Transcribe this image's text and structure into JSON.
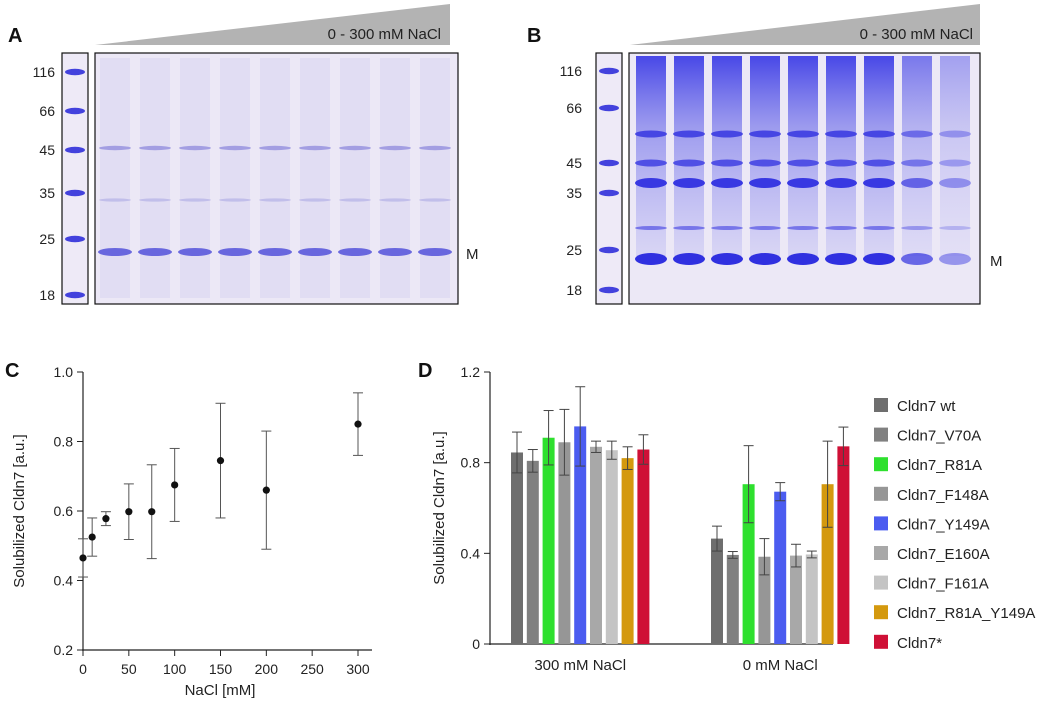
{
  "colors": {
    "gel_bg": "#ece8f6",
    "gel_band": "#3a3ce0",
    "ramp": "#b3b3b3",
    "axis": "#222222",
    "errorbar": "#555555",
    "point": "#111111"
  },
  "panels": {
    "A": {
      "letter": "A",
      "ramp_label": "0 - 300 mM NaCl",
      "ladder": [
        "116",
        "66",
        "45",
        "35",
        "25",
        "18"
      ],
      "band_label": "M"
    },
    "B": {
      "letter": "B",
      "ramp_label": "0 - 300 mM NaCl",
      "ladder": [
        "116",
        "66",
        "45",
        "35",
        "25",
        "18"
      ],
      "band_label": "M"
    }
  },
  "chart_data": [
    {
      "panel": "C",
      "type": "scatter",
      "letter": "C",
      "xlabel": "NaCl [mM]",
      "ylabel": "Solubilized Cldn7 [a.u.]",
      "xlim": [
        0,
        310
      ],
      "ylim": [
        0.2,
        1.0
      ],
      "xticks": [
        "0",
        "50",
        "100",
        "150",
        "200",
        "250",
        "300"
      ],
      "yticks": [
        "0.2",
        "0.4",
        "0.6",
        "0.8",
        "1.0"
      ],
      "points": [
        {
          "x": 0,
          "y": 0.465,
          "err": 0.055
        },
        {
          "x": 10,
          "y": 0.525,
          "err": 0.055
        },
        {
          "x": 25,
          "y": 0.578,
          "err": 0.02
        },
        {
          "x": 50,
          "y": 0.598,
          "err": 0.08
        },
        {
          "x": 75,
          "y": 0.598,
          "err": 0.135
        },
        {
          "x": 100,
          "y": 0.675,
          "err": 0.105
        },
        {
          "x": 150,
          "y": 0.745,
          "err": 0.165
        },
        {
          "x": 200,
          "y": 0.66,
          "err": 0.17
        },
        {
          "x": 300,
          "y": 0.85,
          "err": 0.09
        }
      ]
    },
    {
      "panel": "D",
      "type": "bar",
      "letter": "D",
      "ylabel": "Solubilized Cldn7 [a.u.]",
      "ylim": [
        0,
        1.2
      ],
      "yticks": [
        "0",
        "0.4",
        "0.8",
        "1.2"
      ],
      "categories": [
        "300 mM NaCl",
        "0 mM NaCl"
      ],
      "series": [
        {
          "name": "Cldn7 wt",
          "color": "#6e6e6e",
          "values": [
            0.845,
            0.465
          ],
          "errors": [
            0.09,
            0.055
          ]
        },
        {
          "name": "Cldn7_V70A",
          "color": "#808080",
          "values": [
            0.808,
            0.393
          ],
          "errors": [
            0.05,
            0.015
          ]
        },
        {
          "name": "Cldn7_R81A",
          "color": "#2ee02e",
          "values": [
            0.91,
            0.705
          ],
          "errors": [
            0.12,
            0.17
          ]
        },
        {
          "name": "Cldn7_F148A",
          "color": "#969696",
          "values": [
            0.89,
            0.385
          ],
          "errors": [
            0.145,
            0.08
          ]
        },
        {
          "name": "Cldn7_Y149A",
          "color": "#4b5cf0",
          "values": [
            0.96,
            0.672
          ],
          "errors": [
            0.175,
            0.04
          ]
        },
        {
          "name": "Cldn7_E160A",
          "color": "#a8a8a8",
          "values": [
            0.87,
            0.39
          ],
          "errors": [
            0.025,
            0.05
          ]
        },
        {
          "name": "Cldn7_F161A",
          "color": "#c4c4c4",
          "values": [
            0.855,
            0.395
          ],
          "errors": [
            0.04,
            0.015
          ]
        },
        {
          "name": "Cldn7_R81A_Y149A",
          "color": "#d4990e",
          "values": [
            0.82,
            0.705
          ],
          "errors": [
            0.05,
            0.19
          ]
        },
        {
          "name": "Cldn7*",
          "color": "#cf1036",
          "values": [
            0.858,
            0.872
          ],
          "errors": [
            0.065,
            0.085
          ]
        }
      ]
    }
  ]
}
